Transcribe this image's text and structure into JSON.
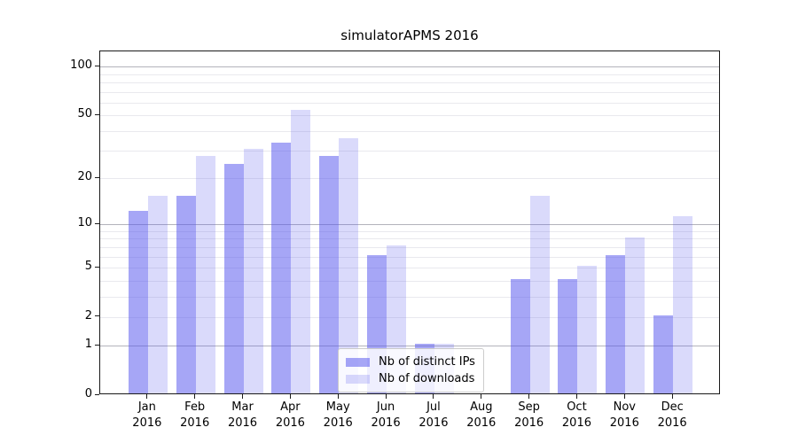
{
  "chart_data": {
    "type": "bar",
    "title": "simulatorAPMS 2016",
    "year_label": "2016",
    "categories": [
      "Jan",
      "Feb",
      "Mar",
      "Apr",
      "May",
      "Jun",
      "Jul",
      "Aug",
      "Sep",
      "Oct",
      "Nov",
      "Dec"
    ],
    "series": [
      {
        "name": "Nb of distinct IPs",
        "color": "#5555ee",
        "alpha": 0.52,
        "values": [
          12,
          15,
          24,
          33,
          27,
          6,
          1,
          0,
          4,
          4,
          6,
          2
        ]
      },
      {
        "name": "Nb of downloads",
        "color": "#5555ee",
        "alpha": 0.22,
        "values": [
          15,
          27,
          30,
          53,
          35,
          7,
          1,
          0,
          15,
          5,
          8,
          11
        ]
      }
    ],
    "yticks": [
      100,
      50,
      20,
      10,
      5,
      2,
      1,
      0
    ],
    "yscale": "log1p",
    "ylim": [
      0,
      124
    ],
    "grid": true,
    "legend_position": "lower-center"
  }
}
